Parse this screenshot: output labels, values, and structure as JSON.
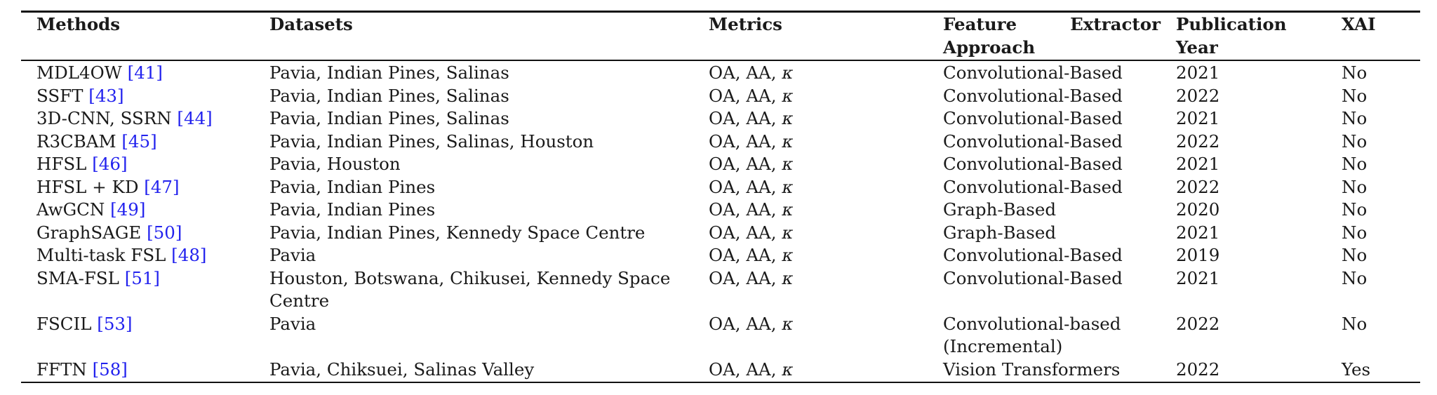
{
  "table": {
    "headers": {
      "methods": "Methods",
      "datasets": "Datasets",
      "metrics": "Metrics",
      "feature_line1_a": "Feature",
      "feature_line1_b": "Extractor",
      "feature_line2": "Approach",
      "year_line1": "Publication",
      "year_line2": "Year",
      "xai": "XAI"
    },
    "rows": [
      {
        "method": "MDL4OW",
        "ref": "[41]",
        "datasets": "Pavia, Indian Pines, Salinas",
        "metrics": "OA, AA, ",
        "kappa": "κ",
        "feature": "Convolutional-Based",
        "year": "2021",
        "xai": "No"
      },
      {
        "method": "SSFT",
        "ref": "[43]",
        "datasets": "Pavia, Indian Pines, Salinas",
        "metrics": "OA, AA, ",
        "kappa": "κ",
        "feature": "Convolutional-Based",
        "year": "2022",
        "xai": "No"
      },
      {
        "method": "3D-CNN, SSRN",
        "ref": "[44]",
        "datasets": "Pavia, Indian Pines, Salinas",
        "metrics": "OA, AA, ",
        "kappa": "κ",
        "feature": "Convolutional-Based",
        "year": "2021",
        "xai": "No"
      },
      {
        "method": "R3CBAM",
        "ref": "[45]",
        "datasets": "Pavia, Indian Pines, Salinas, Houston",
        "metrics": "OA, AA, ",
        "kappa": "κ",
        "feature": "Convolutional-Based",
        "year": "2022",
        "xai": "No"
      },
      {
        "method": "HFSL",
        "ref": "[46]",
        "datasets": "Pavia, Houston",
        "metrics": "OA, AA, ",
        "kappa": "κ",
        "feature": "Convolutional-Based",
        "year": "2021",
        "xai": "No"
      },
      {
        "method": "HFSL + KD",
        "ref": "[47]",
        "datasets": "Pavia, Indian Pines",
        "metrics": "OA, AA, ",
        "kappa": "κ",
        "feature": "Convolutional-Based",
        "year": "2022",
        "xai": "No"
      },
      {
        "method": "AwGCN",
        "ref": "[49]",
        "datasets": "Pavia, Indian Pines",
        "metrics": "OA, AA, ",
        "kappa": "κ",
        "feature": "Graph-Based",
        "year": "2020",
        "xai": "No"
      },
      {
        "method": "GraphSAGE",
        "ref": "[50]",
        "datasets": "Pavia, Indian Pines, Kennedy Space Centre",
        "metrics": "OA, AA, ",
        "kappa": "κ",
        "feature": "Graph-Based",
        "year": "2021",
        "xai": "No"
      },
      {
        "method": "Multi-task FSL",
        "ref": "[48]",
        "datasets": "Pavia",
        "metrics": "OA, AA, ",
        "kappa": "κ",
        "feature": "Convolutional-Based",
        "year": "2019",
        "xai": "No"
      },
      {
        "method": "SMA-FSL",
        "ref": "[51]",
        "datasets": "Houston, Botswana, Chikusei, Kennedy Space Centre",
        "metrics": "OA, AA, ",
        "kappa": "κ",
        "feature": "Convolutional-Based",
        "year": "2021",
        "xai": "No"
      },
      {
        "method": "FSCIL",
        "ref": "[53]",
        "datasets": "Pavia",
        "metrics": "OA, AA, ",
        "kappa": "κ",
        "feature": "Convolutional-based (Incremental)",
        "year": "2022",
        "xai": "No"
      },
      {
        "method": "FFTN",
        "ref": "[58]",
        "datasets": "Pavia, Chiksuei, Salinas Valley",
        "metrics": "OA, AA, ",
        "kappa": "κ",
        "feature": "Vision Transformers",
        "year": "2022",
        "xai": "Yes"
      }
    ]
  }
}
